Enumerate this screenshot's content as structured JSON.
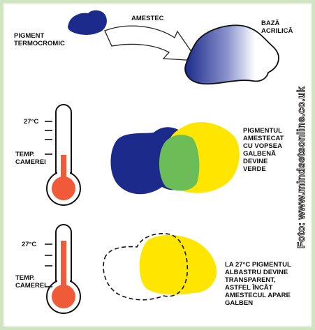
{
  "labels": {
    "pigment": "PIGMENT\nTERMOCROMIC",
    "mix": "AMESTEC",
    "base": "BAZĂ\nACRILICĂ",
    "temp1": "27°C",
    "room1": "TEMP.\nCAMEREI",
    "green_note": "PIGMENTUL\nAMESTECAT\nCU VOPSEA\nGALBENĂ\nDEVINE\nVERDE",
    "temp2": "27°C",
    "room2": "TEMP.\nCAMEREI",
    "yellow_note": "LA 27°C PIGMENTUL\nALBASTRU DEVINE\nTRANSPARENT,\nASTFEL ÎNCÂT\nAMESTECUL APARE\nGALBEN"
  },
  "credit": "Foto: www.mindsetsonline.co.uk",
  "colors": {
    "frame": "#cfe5c1",
    "blue": "#1c2a8c",
    "yellow": "#ffe600",
    "green": "#6cbd57",
    "thermo_red": "#ef5a38"
  }
}
